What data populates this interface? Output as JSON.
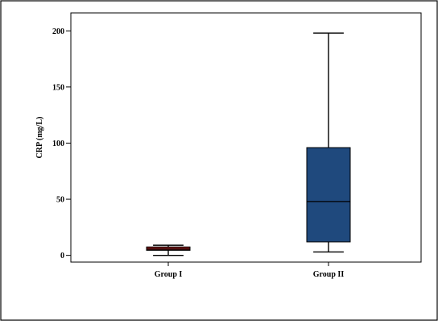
{
  "chart_data": {
    "type": "boxplot",
    "title": "",
    "xlabel": "",
    "ylabel": "CRP (mg/L)",
    "ylim": [
      -6,
      216
    ],
    "yticks": [
      0,
      50,
      100,
      150,
      200
    ],
    "grid": false,
    "legend": "none",
    "categories": [
      "Group I",
      "Group II"
    ],
    "boxes": [
      {
        "category": "Group I",
        "whisker_low": 0,
        "q1": 4.5,
        "median": 5.5,
        "q3": 7.5,
        "whisker_high": 9,
        "color": "#8b1a1a"
      },
      {
        "category": "Group II",
        "whisker_low": 3,
        "q1": 12,
        "median": 48,
        "q3": 96,
        "whisker_high": 198,
        "color": "#1f497d"
      }
    ]
  }
}
